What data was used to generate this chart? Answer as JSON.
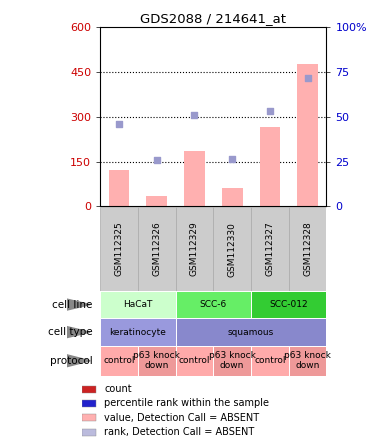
{
  "title": "GDS2088 / 214641_at",
  "samples": [
    "GSM112325",
    "GSM112326",
    "GSM112329",
    "GSM112330",
    "GSM112327",
    "GSM112328"
  ],
  "bar_values": [
    120,
    35,
    185,
    60,
    265,
    475
  ],
  "dot_values_blue": [
    275,
    155,
    305,
    160,
    320,
    430
  ],
  "ylim_left": [
    0,
    600
  ],
  "ylim_right": [
    0,
    100
  ],
  "yticks_left": [
    0,
    150,
    300,
    450,
    600
  ],
  "yticks_right": [
    0,
    25,
    50,
    75,
    100
  ],
  "bar_color": "#FFB0B0",
  "dot_color": "#9999CC",
  "cell_line_data": [
    {
      "label": "HaCaT",
      "span": [
        0,
        2
      ],
      "color": "#CCFFCC"
    },
    {
      "label": "SCC-6",
      "span": [
        2,
        4
      ],
      "color": "#66EE66"
    },
    {
      "label": "SCC-012",
      "span": [
        4,
        6
      ],
      "color": "#33CC33"
    }
  ],
  "cell_type_data": [
    {
      "label": "keratinocyte",
      "span": [
        0,
        2
      ],
      "color": "#9999DD"
    },
    {
      "label": "squamous",
      "span": [
        2,
        6
      ],
      "color": "#8888CC"
    }
  ],
  "protocol_data": [
    {
      "label": "control",
      "span": [
        0,
        1
      ],
      "color": "#FFAAAA"
    },
    {
      "label": "p63 knock\ndown",
      "span": [
        1,
        2
      ],
      "color": "#EE9999"
    },
    {
      "label": "control",
      "span": [
        2,
        3
      ],
      "color": "#FFAAAA"
    },
    {
      "label": "p63 knock\ndown",
      "span": [
        3,
        4
      ],
      "color": "#EE9999"
    },
    {
      "label": "control",
      "span": [
        4,
        5
      ],
      "color": "#FFAAAA"
    },
    {
      "label": "p63 knock\ndown",
      "span": [
        5,
        6
      ],
      "color": "#EE9999"
    }
  ],
  "legend_items": [
    {
      "color": "#CC2222",
      "label": "count",
      "marker": "s"
    },
    {
      "color": "#2222CC",
      "label": "percentile rank within the sample",
      "marker": "s"
    },
    {
      "color": "#FFB0B0",
      "label": "value, Detection Call = ABSENT",
      "marker": "s"
    },
    {
      "color": "#BBBBDD",
      "label": "rank, Detection Call = ABSENT",
      "marker": "s"
    }
  ],
  "row_labels": [
    "cell line",
    "cell type",
    "protocol"
  ],
  "left_ylabel_color": "#CC0000",
  "right_ylabel_color": "#0000CC",
  "sample_bg_color": "#CCCCCC",
  "sample_border_color": "#AAAAAA",
  "dotted_line_color": "#000000",
  "arrow_color": "#888888"
}
